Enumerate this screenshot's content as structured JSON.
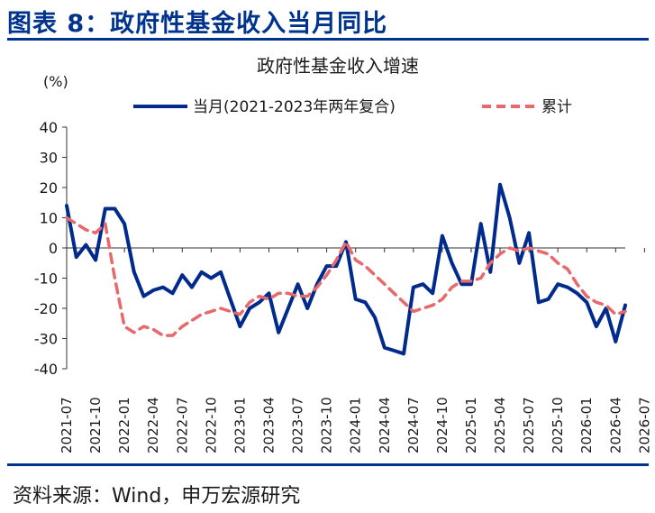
{
  "figure_title": "图表 8：政府性基金收入当月同比",
  "source": "资料来源：Wind，申万宏源研究",
  "chart_data": {
    "type": "line",
    "title": "政府性基金收入增速",
    "unit": "(%)",
    "ylim": [
      -40,
      40
    ],
    "yticks": [
      40,
      30,
      20,
      10,
      0,
      -10,
      -20,
      -30,
      -40
    ],
    "grid": false,
    "legend_position": "top",
    "xticks": [
      "2021-07",
      "2021-10",
      "2022-01",
      "2022-04",
      "2022-07",
      "2022-10",
      "2023-01",
      "2023-04",
      "2023-07",
      "2023-10",
      "2024-01",
      "2024-04",
      "2024-07",
      "2024-10",
      "2025-01",
      "2025-04",
      "2025-07",
      "2025-10",
      "2026-01",
      "2026-04",
      "2026-07"
    ],
    "x_start": "2021-07",
    "series": [
      {
        "name": "当月(2021-2023年两年复合)",
        "color": "#002a8c",
        "style": "solid",
        "values": [
          14,
          -3,
          1,
          -4,
          13,
          13,
          8,
          -8,
          -16,
          -14,
          -13,
          -15,
          -9,
          -13,
          -8,
          -10,
          -8,
          -17,
          -26,
          -20,
          -18,
          -15,
          -28,
          -20,
          -12,
          -20,
          -12,
          -6,
          -6,
          2,
          -17,
          -18,
          -23,
          -33,
          -34,
          -35,
          -13,
          -12,
          -15,
          4,
          -5,
          -12,
          -12,
          8,
          -8,
          21,
          10,
          -5,
          5,
          -18,
          -17,
          -12,
          -13,
          -15,
          -18,
          -26,
          -20,
          -31,
          -19
        ]
      },
      {
        "name": "累计",
        "color": "#e8696b",
        "style": "dashed",
        "values": [
          10,
          8,
          6,
          5,
          8,
          -10,
          -26,
          -28,
          -26,
          -27,
          -29,
          -29,
          -26,
          -24,
          -22,
          -21,
          -20,
          -21,
          -22,
          -18,
          -16,
          -17,
          -15,
          -15,
          -16,
          -16,
          -13,
          -9,
          -4,
          2,
          -4,
          -6,
          -9,
          -12,
          -15,
          -18,
          -21,
          -20,
          -19,
          -17,
          -13,
          -11,
          -11,
          -10,
          -5,
          -2,
          0,
          -1,
          0,
          -1,
          -2,
          -5,
          -7,
          -12,
          -16,
          -18,
          -19,
          -22,
          -21
        ]
      }
    ]
  }
}
